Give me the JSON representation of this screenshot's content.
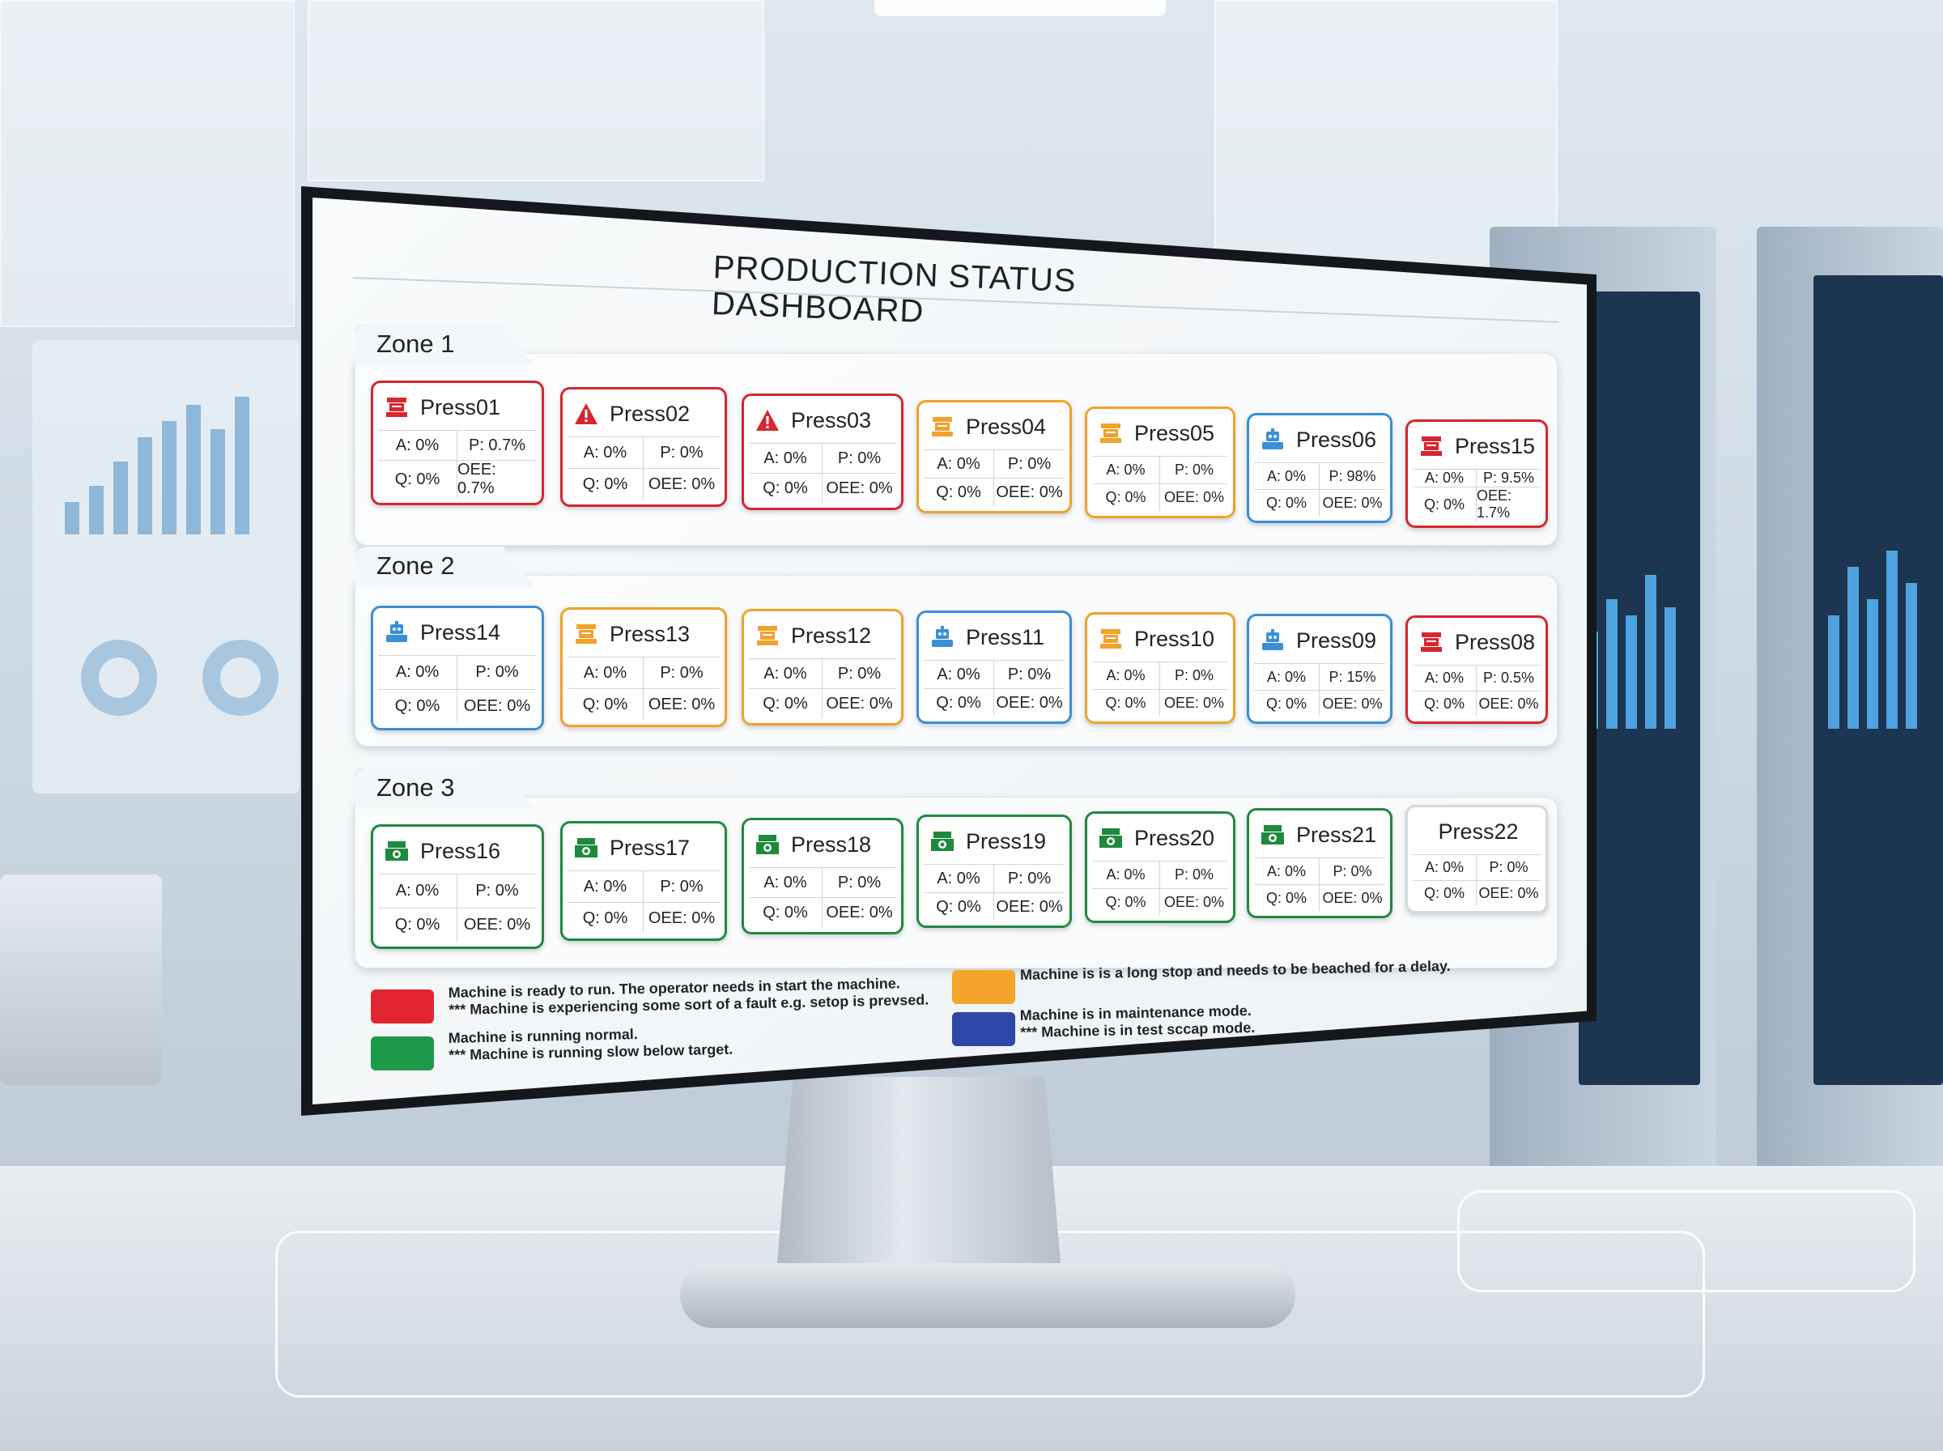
{
  "dashboard": {
    "title": "PRODUCTION STATUS DASHBOARD"
  },
  "status_colors": {
    "red": "#d6262e",
    "orange": "#f0a22a",
    "blue": "#3a8fd6",
    "green": "#1e8a3e",
    "grey": "#d4d9de",
    "legend_blue": "#2f48a8"
  },
  "zones": [
    {
      "label": "Zone 1",
      "machines": [
        {
          "name": "Press01",
          "status": "red",
          "icon": "press-machine-icon",
          "a": "A: 0%",
          "p": "P: 0.7%",
          "q": "Q: 0%",
          "oee": "OEE: 0.7%"
        },
        {
          "name": "Press02",
          "status": "red",
          "icon": "warning-triangle-icon",
          "a": "A: 0%",
          "p": "P: 0%",
          "q": "Q: 0%",
          "oee": "OEE: 0%"
        },
        {
          "name": "Press03",
          "status": "red",
          "icon": "warning-triangle-icon",
          "a": "A: 0%",
          "p": "P: 0%",
          "q": "Q: 0%",
          "oee": "OEE: 0%"
        },
        {
          "name": "Press04",
          "status": "orange",
          "icon": "press-machine-icon",
          "a": "A: 0%",
          "p": "P: 0%",
          "q": "Q: 0%",
          "oee": "OEE: 0%"
        },
        {
          "name": "Press05",
          "status": "orange",
          "icon": "press-machine-icon",
          "a": "A: 0%",
          "p": "P: 0%",
          "q": "Q: 0%",
          "oee": "OEE: 0%"
        },
        {
          "name": "Press06",
          "status": "blue",
          "icon": "maintenance-robot-icon",
          "a": "A: 0%",
          "p": "P: 98%",
          "q": "Q: 0%",
          "oee": "OEE: 0%"
        },
        {
          "name": "Press15",
          "status": "red",
          "icon": "press-machine-icon",
          "a": "A: 0%",
          "p": "P: 9.5%",
          "q": "Q: 0%",
          "oee": "OEE: 1.7%"
        }
      ]
    },
    {
      "label": "Zone 2",
      "machines": [
        {
          "name": "Press14",
          "status": "blue",
          "icon": "maintenance-robot-icon",
          "a": "A: 0%",
          "p": "P: 0%",
          "q": "Q: 0%",
          "oee": "OEE: 0%"
        },
        {
          "name": "Press13",
          "status": "orange",
          "icon": "press-machine-icon",
          "a": "A: 0%",
          "p": "P: 0%",
          "q": "Q: 0%",
          "oee": "OEE: 0%"
        },
        {
          "name": "Press12",
          "status": "orange",
          "icon": "press-machine-icon",
          "a": "A: 0%",
          "p": "P: 0%",
          "q": "Q: 0%",
          "oee": "OEE: 0%"
        },
        {
          "name": "Press11",
          "status": "blue",
          "icon": "maintenance-robot-icon",
          "a": "A: 0%",
          "p": "P: 0%",
          "q": "Q: 0%",
          "oee": "OEE: 0%"
        },
        {
          "name": "Press10",
          "status": "orange",
          "icon": "press-machine-icon",
          "a": "A: 0%",
          "p": "P: 0%",
          "q": "Q: 0%",
          "oee": "OEE: 0%"
        },
        {
          "name": "Press09",
          "status": "blue",
          "icon": "maintenance-robot-icon",
          "a": "A: 0%",
          "p": "P: 15%",
          "q": "Q: 0%",
          "oee": "OEE: 0%"
        },
        {
          "name": "Press08",
          "status": "red",
          "icon": "press-machine-icon",
          "a": "A: 0%",
          "p": "P: 0.5%",
          "q": "Q: 0%",
          "oee": "OEE: 0%"
        }
      ]
    },
    {
      "label": "Zone 3",
      "machines": [
        {
          "name": "Press16",
          "status": "green",
          "icon": "gear-machine-icon",
          "a": "A: 0%",
          "p": "P: 0%",
          "q": "Q: 0%",
          "oee": "OEE: 0%"
        },
        {
          "name": "Press17",
          "status": "green",
          "icon": "gear-machine-icon",
          "a": "A: 0%",
          "p": "P: 0%",
          "q": "Q: 0%",
          "oee": "OEE: 0%"
        },
        {
          "name": "Press18",
          "status": "green",
          "icon": "gear-machine-icon",
          "a": "A: 0%",
          "p": "P: 0%",
          "q": "Q: 0%",
          "oee": "OEE: 0%"
        },
        {
          "name": "Press19",
          "status": "green",
          "icon": "gear-machine-icon",
          "a": "A: 0%",
          "p": "P: 0%",
          "q": "Q: 0%",
          "oee": "OEE: 0%"
        },
        {
          "name": "Press20",
          "status": "green",
          "icon": "gear-machine-icon",
          "a": "A: 0%",
          "p": "P: 0%",
          "q": "Q: 0%",
          "oee": "OEE: 0%"
        },
        {
          "name": "Press21",
          "status": "green",
          "icon": "gear-machine-icon",
          "a": "A: 0%",
          "p": "P: 0%",
          "q": "Q: 0%",
          "oee": "OEE: 0%"
        },
        {
          "name": "Press22",
          "status": "grey",
          "icon": "",
          "a": "A: 0%",
          "p": "P: 0%",
          "q": "Q: 0%",
          "oee": "OEE: 0%"
        }
      ]
    }
  ],
  "legend": {
    "red": {
      "line1": "Machine is ready to run. The operator needs in start the machine.",
      "line2": "*** Machine is experiencing some sort of a fault e.g. setop is prevsed."
    },
    "green": {
      "line1": "Machine is running normal.",
      "line2": "*** Machine is running slow below target."
    },
    "orange": {
      "line1": "Machine is is a long stop and needs to be beached for a delay."
    },
    "blue": {
      "line1": "Machine is in maintenance mode.",
      "line2": "*** Machine is in test sccap mode."
    }
  }
}
